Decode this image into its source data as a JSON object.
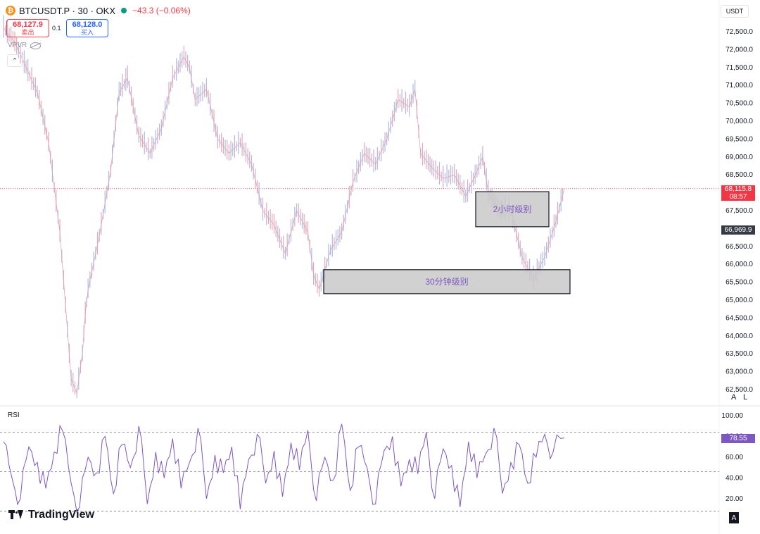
{
  "header": {
    "symbol": "BTCUSDT.P · 30 · OKX",
    "change": "−43.3 (−0.06%)",
    "sell_price": "68,127.9",
    "sell_label": "卖出",
    "spread": "0.1",
    "buy_price": "68,128.0",
    "buy_label": "买入",
    "indicator_name": "VPVR",
    "currency": "USDT"
  },
  "price_tags": {
    "last_price": "68,115.8",
    "countdown": "08:57",
    "crosshair": "66,969.9",
    "rsi_value": "78.55"
  },
  "scale_buttons": {
    "auto": "A",
    "log": "L"
  },
  "rsi_panel": {
    "label": "RSI"
  },
  "brand": {
    "name": "TradingView",
    "corner_letter": "A"
  },
  "colors": {
    "up": "#a9bde8",
    "down": "#e6a9b8",
    "rsi_line": "#7e57c2",
    "last_price": "#f23645",
    "zone_fill": "#c9c9c9"
  },
  "chart_data": [
    {
      "type": "line",
      "description_kind": "price",
      "y_tick_labels": [
        "72,500.0",
        "72,000.0",
        "71,500.0",
        "71,000.0",
        "70,500.0",
        "70,000.0",
        "69,500.0",
        "69,000.0",
        "68,500.0",
        "68,000.0",
        "67,500.0",
        "67,000.0",
        "66,500.0",
        "66,000.0",
        "65,500.0",
        "65,000.0",
        "64,500.0",
        "64,000.0",
        "63,500.0",
        "63,000.0",
        "62,500.0"
      ],
      "ylim": [
        62500,
        72500
      ],
      "x": [
        0,
        4,
        8,
        12,
        16,
        20,
        24,
        26,
        28,
        29,
        30,
        34,
        38,
        41,
        44,
        48,
        52,
        56,
        60,
        64,
        66,
        68,
        72,
        76,
        80,
        84,
        88,
        92,
        96,
        100,
        104,
        108,
        110,
        112,
        116,
        120,
        124,
        128,
        132,
        136,
        140,
        144,
        146,
        148,
        152,
        156,
        160,
        164,
        168,
        170,
        172,
        176,
        180,
        184,
        188,
        192,
        196,
        199
      ],
      "values": [
        72600,
        72200,
        71500,
        70800,
        69400,
        66900,
        62800,
        62400,
        63500,
        64600,
        65300,
        66800,
        68600,
        70800,
        71200,
        69600,
        69100,
        69800,
        71200,
        71800,
        71500,
        70600,
        70900,
        69500,
        69100,
        69400,
        68800,
        67500,
        67100,
        66300,
        67500,
        66900,
        65700,
        65300,
        66400,
        66900,
        68300,
        69100,
        68800,
        69500,
        70600,
        70400,
        70900,
        69100,
        68700,
        68400,
        68500,
        67900,
        68600,
        69000,
        68000,
        67500,
        67500,
        66200,
        65600,
        66200,
        67200,
        68115.8
      ],
      "annotations": [
        {
          "text": "2小时级别",
          "from_y": 67050,
          "to_y": 68030
        },
        {
          "text": "30分钟级别",
          "from_y": 65180,
          "to_y": 65850
        }
      ],
      "last_price": 68115.8
    },
    {
      "type": "line",
      "description_kind": "rsi",
      "y_tick_labels": [
        "100.00",
        "80.00",
        "60.00",
        "40.00",
        "20.00"
      ],
      "ylim": [
        0,
        100
      ],
      "levels": [
        84,
        46,
        8
      ],
      "x": [
        0,
        3,
        6,
        9,
        12,
        15,
        18,
        21,
        24,
        27,
        30,
        33,
        36,
        39,
        42,
        45,
        48,
        51,
        54,
        57,
        60,
        63,
        66,
        69,
        72,
        75,
        78,
        81,
        84,
        87,
        90,
        93,
        96,
        99,
        102,
        105,
        108,
        111,
        114,
        117,
        120,
        123,
        126,
        129,
        132,
        135,
        138,
        141,
        144,
        147,
        150,
        153,
        156,
        159,
        162,
        165,
        168,
        171,
        174,
        177,
        180,
        183,
        186,
        189,
        192,
        195,
        199
      ],
      "values": [
        75,
        40,
        20,
        70,
        55,
        30,
        65,
        85,
        35,
        12,
        60,
        45,
        80,
        25,
        72,
        50,
        90,
        15,
        65,
        40,
        78,
        30,
        55,
        88,
        20,
        62,
        45,
        70,
        10,
        58,
        82,
        35,
        66,
        22,
        74,
        48,
        86,
        18,
        60,
        38,
        92,
        28,
        70,
        50,
        15,
        66,
        80,
        32,
        58,
        44,
        84,
        20,
        68,
        52,
        12,
        75,
        40,
        63,
        88,
        25,
        55,
        72,
        35,
        60,
        82,
        65,
        78.55
      ]
    }
  ]
}
